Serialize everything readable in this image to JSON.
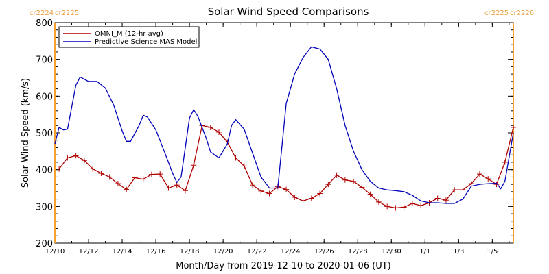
{
  "chart_data": {
    "type": "line",
    "title": "Solar Wind Speed Comparisons",
    "xlabel": "Month/Day from 2019-12-10 to 2020-01-06 (UT)",
    "ylabel": "Solar Wind Speed (km/s)",
    "xlim": [
      "2019-12-10T00:00",
      "2020-01-06T06:00"
    ],
    "ylim": [
      200,
      800
    ],
    "x_ticks": [
      {
        "date": "2019-12-10",
        "label": "12/10"
      },
      {
        "date": "2019-12-12",
        "label": "12/12"
      },
      {
        "date": "2019-12-14",
        "label": "12/14"
      },
      {
        "date": "2019-12-16",
        "label": "12/16"
      },
      {
        "date": "2019-12-18",
        "label": "12/18"
      },
      {
        "date": "2019-12-20",
        "label": "12/20"
      },
      {
        "date": "2019-12-22",
        "label": "12/22"
      },
      {
        "date": "2019-12-24",
        "label": "12/24"
      },
      {
        "date": "2019-12-26",
        "label": "12/26"
      },
      {
        "date": "2019-12-28",
        "label": "12/28"
      },
      {
        "date": "2019-12-30",
        "label": "12/30"
      },
      {
        "date": "2020-01-01",
        "label": "1/1"
      },
      {
        "date": "2020-01-03",
        "label": "1/3"
      },
      {
        "date": "2020-01-05",
        "label": "1/5"
      }
    ],
    "y_ticks": [
      200,
      300,
      400,
      500,
      600,
      700,
      800
    ],
    "legend_position": "top-left",
    "grid": false,
    "rotation_markers": [
      {
        "label_left": "cr2224",
        "label_right": "cr2225",
        "date": "2019-12-10T00:00",
        "color": "#f5a030",
        "label_side": "left"
      },
      {
        "label_left": "cr2225",
        "label_right": "cr2226",
        "date": "2020-01-06T06:00",
        "color": "#f5a030",
        "label_side": "right"
      }
    ],
    "series": [
      {
        "name": "OMNI_M (12-hr avg)",
        "color": "#b00000",
        "marker": "plus",
        "points": [
          [
            "2019-12-10T06:00",
            402
          ],
          [
            "2019-12-10T18:00",
            432
          ],
          [
            "2019-12-11T06:00",
            438
          ],
          [
            "2019-12-11T18:00",
            425
          ],
          [
            "2019-12-12T06:00",
            402
          ],
          [
            "2019-12-12T18:00",
            390
          ],
          [
            "2019-12-13T06:00",
            380
          ],
          [
            "2019-12-13T18:00",
            362
          ],
          [
            "2019-12-14T06:00",
            346
          ],
          [
            "2019-12-14T18:00",
            378
          ],
          [
            "2019-12-15T06:00",
            374
          ],
          [
            "2019-12-15T18:00",
            387
          ],
          [
            "2019-12-16T06:00",
            388
          ],
          [
            "2019-12-16T18:00",
            350
          ],
          [
            "2019-12-17T06:00",
            358
          ],
          [
            "2019-12-17T18:00",
            343
          ],
          [
            "2019-12-18T06:00",
            412
          ],
          [
            "2019-12-18T18:00",
            520
          ],
          [
            "2019-12-19T06:00",
            515
          ],
          [
            "2019-12-19T18:00",
            502
          ],
          [
            "2019-12-20T06:00",
            475
          ],
          [
            "2019-12-20T18:00",
            432
          ],
          [
            "2019-12-21T06:00",
            410
          ],
          [
            "2019-12-21T18:00",
            358
          ],
          [
            "2019-12-22T06:00",
            342
          ],
          [
            "2019-12-22T18:00",
            335
          ],
          [
            "2019-12-23T06:00",
            354
          ],
          [
            "2019-12-23T18:00",
            346
          ],
          [
            "2019-12-24T06:00",
            325
          ],
          [
            "2019-12-24T18:00",
            315
          ],
          [
            "2019-12-25T06:00",
            322
          ],
          [
            "2019-12-25T18:00",
            335
          ],
          [
            "2019-12-26T06:00",
            360
          ],
          [
            "2019-12-26T18:00",
            385
          ],
          [
            "2019-12-27T06:00",
            372
          ],
          [
            "2019-12-27T18:00",
            368
          ],
          [
            "2019-12-28T06:00",
            352
          ],
          [
            "2019-12-28T18:00",
            333
          ],
          [
            "2019-12-29T06:00",
            312
          ],
          [
            "2019-12-29T18:00",
            300
          ],
          [
            "2019-12-30T06:00",
            296
          ],
          [
            "2019-12-30T18:00",
            298
          ],
          [
            "2019-12-31T06:00",
            308
          ],
          [
            "2019-12-31T18:00",
            302
          ],
          [
            "2020-01-01T06:00",
            310
          ],
          [
            "2020-01-01T18:00",
            322
          ],
          [
            "2020-01-02T06:00",
            317
          ],
          [
            "2020-01-02T18:00",
            345
          ],
          [
            "2020-01-03T06:00",
            345
          ],
          [
            "2020-01-03T18:00",
            362
          ],
          [
            "2020-01-04T06:00",
            388
          ],
          [
            "2020-01-04T18:00",
            375
          ],
          [
            "2020-01-05T06:00",
            360
          ],
          [
            "2020-01-05T18:00",
            420
          ],
          [
            "2020-01-06T06:00",
            515
          ]
        ]
      },
      {
        "name": "Predictive Science MAS Model",
        "color": "#0000b8",
        "marker": "none",
        "points": [
          [
            "2019-12-10T00:00",
            470
          ],
          [
            "2019-12-10T06:00",
            515
          ],
          [
            "2019-12-10T12:00",
            508
          ],
          [
            "2019-12-10T18:00",
            510
          ],
          [
            "2019-12-11T06:00",
            630
          ],
          [
            "2019-12-11T12:00",
            652
          ],
          [
            "2019-12-12T00:00",
            640
          ],
          [
            "2019-12-12T12:00",
            640
          ],
          [
            "2019-12-13T00:00",
            622
          ],
          [
            "2019-12-13T12:00",
            575
          ],
          [
            "2019-12-14T00:00",
            505
          ],
          [
            "2019-12-14T06:00",
            477
          ],
          [
            "2019-12-14T12:00",
            477
          ],
          [
            "2019-12-15T00:00",
            520
          ],
          [
            "2019-12-15T06:00",
            548
          ],
          [
            "2019-12-15T12:00",
            543
          ],
          [
            "2019-12-16T00:00",
            508
          ],
          [
            "2019-12-16T12:00",
            450
          ],
          [
            "2019-12-17T00:00",
            390
          ],
          [
            "2019-12-17T06:00",
            365
          ],
          [
            "2019-12-17T12:00",
            380
          ],
          [
            "2019-12-18T00:00",
            540
          ],
          [
            "2019-12-18T06:00",
            563
          ],
          [
            "2019-12-18T12:00",
            545
          ],
          [
            "2019-12-19T00:00",
            485
          ],
          [
            "2019-12-19T06:00",
            448
          ],
          [
            "2019-12-19T18:00",
            432
          ],
          [
            "2019-12-20T06:00",
            470
          ],
          [
            "2019-12-20T12:00",
            520
          ],
          [
            "2019-12-20T18:00",
            536
          ],
          [
            "2019-12-21T06:00",
            510
          ],
          [
            "2019-12-21T18:00",
            445
          ],
          [
            "2019-12-22T06:00",
            380
          ],
          [
            "2019-12-22T18:00",
            350
          ],
          [
            "2019-12-23T06:00",
            350
          ],
          [
            "2019-12-23T18:00",
            580
          ],
          [
            "2019-12-24T06:00",
            660
          ],
          [
            "2019-12-24T18:00",
            705
          ],
          [
            "2019-12-25T06:00",
            734
          ],
          [
            "2019-12-25T18:00",
            728
          ],
          [
            "2019-12-26T06:00",
            700
          ],
          [
            "2019-12-26T18:00",
            620
          ],
          [
            "2019-12-27T06:00",
            520
          ],
          [
            "2019-12-27T18:00",
            450
          ],
          [
            "2019-12-28T06:00",
            400
          ],
          [
            "2019-12-28T18:00",
            368
          ],
          [
            "2019-12-29T06:00",
            350
          ],
          [
            "2019-12-29T18:00",
            345
          ],
          [
            "2019-12-30T06:00",
            343
          ],
          [
            "2019-12-30T18:00",
            340
          ],
          [
            "2019-12-31T06:00",
            330
          ],
          [
            "2019-12-31T18:00",
            315
          ],
          [
            "2020-01-01T06:00",
            310
          ],
          [
            "2020-01-01T18:00",
            310
          ],
          [
            "2020-01-02T06:00",
            308
          ],
          [
            "2020-01-02T18:00",
            308
          ],
          [
            "2020-01-03T06:00",
            320
          ],
          [
            "2020-01-03T18:00",
            355
          ],
          [
            "2020-01-04T06:00",
            360
          ],
          [
            "2020-01-04T18:00",
            362
          ],
          [
            "2020-01-05T06:00",
            363
          ],
          [
            "2020-01-05T12:00",
            348
          ],
          [
            "2020-01-05T18:00",
            368
          ],
          [
            "2020-01-06T06:00",
            500
          ]
        ]
      }
    ]
  }
}
